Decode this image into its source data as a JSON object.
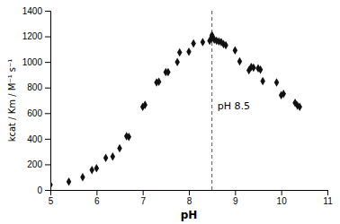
{
  "chart_data": {
    "type": "scatter",
    "x": [
      5.0,
      5.4,
      5.7,
      5.9,
      6.0,
      6.2,
      6.35,
      6.5,
      6.65,
      6.7,
      7.0,
      7.05,
      7.3,
      7.35,
      7.5,
      7.55,
      7.75,
      7.8,
      8.0,
      8.1,
      8.3,
      8.45,
      8.5,
      8.5,
      8.5,
      8.5,
      8.55,
      8.6,
      8.65,
      8.7,
      8.75,
      8.8,
      9.0,
      9.1,
      9.3,
      9.35,
      9.4,
      9.5,
      9.55,
      9.6,
      9.9,
      10.0,
      10.05,
      10.3,
      10.35,
      10.4
    ],
    "values": [
      40,
      65,
      100,
      155,
      170,
      250,
      260,
      325,
      420,
      415,
      650,
      665,
      840,
      845,
      920,
      920,
      1000,
      1075,
      1080,
      1145,
      1155,
      1165,
      1185,
      1195,
      1200,
      1210,
      1175,
      1165,
      1160,
      1155,
      1140,
      1130,
      1090,
      1005,
      935,
      960,
      955,
      950,
      940,
      850,
      840,
      740,
      750,
      680,
      660,
      650
    ],
    "color": "#111111",
    "marker": "diamond",
    "xlabel": "pH",
    "ylabel": "kcat / Km / M⁻¹ s⁻¹",
    "xlim": [
      5,
      11
    ],
    "ylim": [
      0,
      1400
    ],
    "xticks": [
      5,
      6,
      7,
      8,
      9,
      10,
      11
    ],
    "yticks": [
      0,
      200,
      400,
      600,
      800,
      1000,
      1200,
      1400
    ],
    "reference_lines": [
      {
        "x": 8.5,
        "color": "#555555",
        "line_style": "dashed"
      }
    ],
    "annotations": [
      {
        "text": "pH 8.5",
        "x": 8.62,
        "y": 650
      }
    ],
    "grid": false
  }
}
